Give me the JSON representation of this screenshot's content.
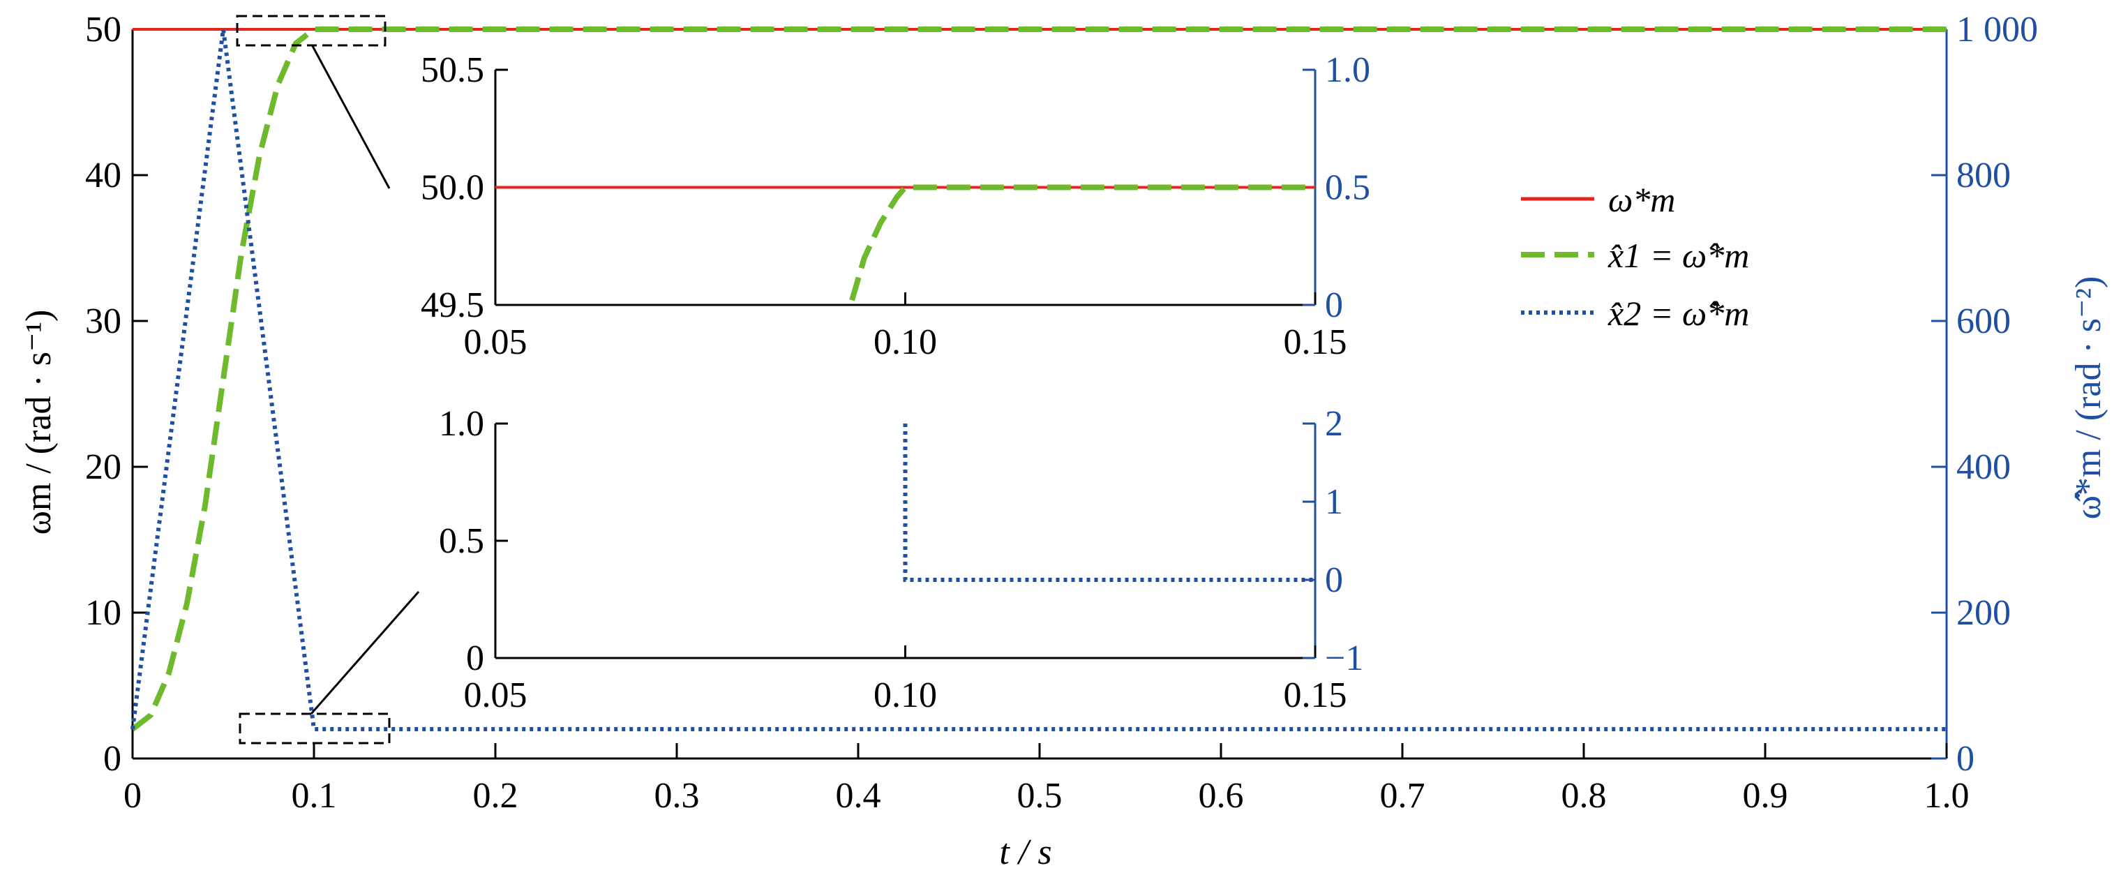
{
  "chart_data": {
    "type": "line",
    "xlabel": "t / s",
    "ylabel_left": "ωm / (rad · s⁻¹)",
    "ylabel_right": "ω̂̇*m / (rad · s⁻²)",
    "xlim": [
      0,
      1.0
    ],
    "ylim_left": [
      0,
      50
    ],
    "ylim_right": [
      0,
      1000
    ],
    "x_ticks": [
      "0",
      "0.1",
      "0.2",
      "0.3",
      "0.4",
      "0.5",
      "0.6",
      "0.7",
      "0.8",
      "0.9",
      "1.0"
    ],
    "y_left_ticks": [
      "0",
      "10",
      "20",
      "30",
      "40",
      "50"
    ],
    "y_right_ticks": [
      "0",
      "200",
      "400",
      "600",
      "800",
      "1 000"
    ],
    "legend_position": "right",
    "series": [
      {
        "name": "ω*m",
        "axis": "left",
        "style": "solid",
        "color": "#e8231e",
        "points": [
          [
            0,
            50
          ],
          [
            1.0,
            50
          ]
        ]
      },
      {
        "name": "x̂1 = ω̂*m",
        "axis": "left",
        "style": "dashed",
        "color": "#6fba2c",
        "points": [
          [
            0,
            0
          ],
          [
            0.01,
            1
          ],
          [
            0.02,
            4
          ],
          [
            0.03,
            9
          ],
          [
            0.04,
            16
          ],
          [
            0.05,
            25
          ],
          [
            0.06,
            34
          ],
          [
            0.07,
            41
          ],
          [
            0.08,
            46
          ],
          [
            0.09,
            49
          ],
          [
            0.1,
            50
          ],
          [
            1.0,
            50
          ]
        ]
      },
      {
        "name": "x̂2 = ω̂̇*m",
        "axis": "right",
        "style": "dotted",
        "color": "#1f4fa3",
        "points": [
          [
            0,
            0
          ],
          [
            0.05,
            1000
          ],
          [
            0.1,
            0
          ],
          [
            1.0,
            0
          ]
        ]
      }
    ],
    "insets": [
      {
        "xlim": [
          0.05,
          0.15
        ],
        "ylim_left": [
          49.5,
          50.5
        ],
        "ylim_right": [
          0,
          1.0
        ],
        "x_ticks": [
          "0.05",
          "0.10",
          "0.15"
        ],
        "y_left_ticks": [
          "49.5",
          "50.0",
          "50.5"
        ],
        "y_right_ticks": [
          "0",
          "0.5",
          "1.0"
        ],
        "series": [
          {
            "name": "ω*m",
            "points": [
              [
                0.05,
                50
              ],
              [
                0.15,
                50
              ]
            ]
          },
          {
            "name": "x̂1 = ω̂*m",
            "points": [
              [
                0.0935,
                49.52
              ],
              [
                0.095,
                49.7
              ],
              [
                0.097,
                49.85
              ],
              [
                0.099,
                49.96
              ],
              [
                0.1,
                50
              ],
              [
                0.15,
                50
              ]
            ]
          }
        ]
      },
      {
        "xlim": [
          0.05,
          0.15
        ],
        "ylim_left": [
          0,
          1.0
        ],
        "ylim_right": [
          -1,
          2
        ],
        "x_ticks": [
          "0.05",
          "0.10",
          "0.15"
        ],
        "y_left_ticks": [
          "0",
          "0.5",
          "1.0"
        ],
        "y_right_ticks": [
          "−1",
          "0",
          "1",
          "2"
        ],
        "series": [
          {
            "name": "x̂2 = ω̂̇*m",
            "points": [
              [
                0.1,
                2
              ],
              [
                0.1,
                0
              ],
              [
                0.15,
                0
              ]
            ]
          }
        ]
      }
    ]
  },
  "colors": {
    "axis_black": "#000000",
    "axis_blue": "#1f4fa3",
    "ref_red": "#e8231e",
    "est_green": "#6fba2c",
    "acc_blue": "#1f4fa3"
  }
}
